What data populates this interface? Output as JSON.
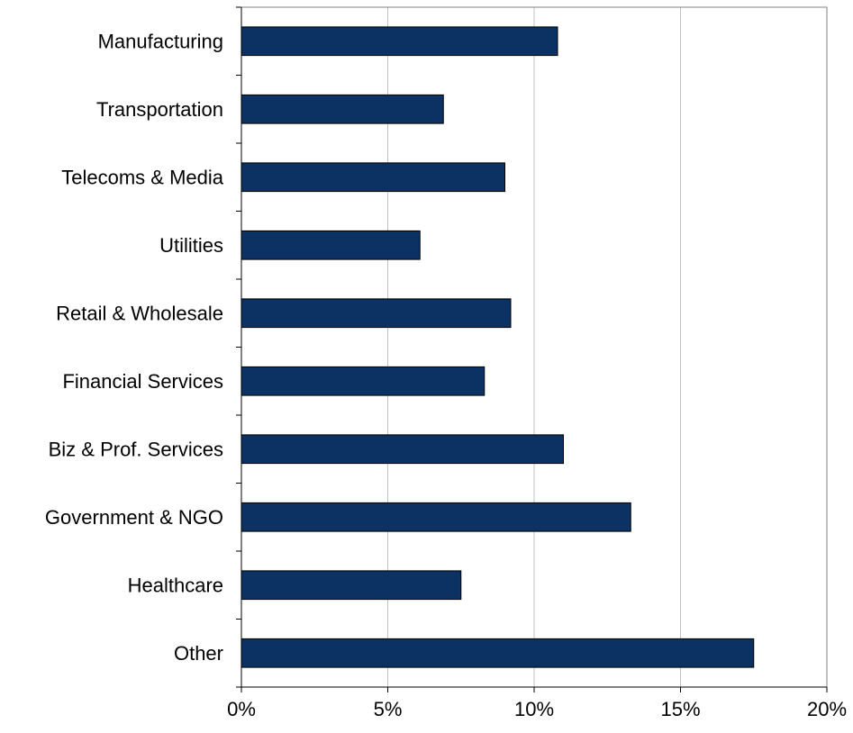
{
  "chart_data": {
    "type": "bar",
    "orientation": "horizontal",
    "title": "",
    "xlabel": "",
    "ylabel": "",
    "categories": [
      "Manufacturing",
      "Transportation",
      "Telecoms & Media",
      "Utilities",
      "Retail & Wholesale",
      "Financial Services",
      "Biz & Prof. Services",
      "Government & NGO",
      "Healthcare",
      "Other"
    ],
    "values": [
      10.8,
      6.9,
      9.0,
      6.1,
      9.2,
      8.3,
      11.0,
      13.3,
      7.5,
      17.5
    ],
    "xlim": [
      0,
      20
    ],
    "x_ticks": [
      0,
      5,
      10,
      15,
      20
    ],
    "x_tick_labels": [
      "0%",
      "5%",
      "10%",
      "15%",
      "20%"
    ],
    "unit": "%",
    "grid": "vertical",
    "legend": "none",
    "bar_color": "#0b3263",
    "gridline_color": "#c0c0c0"
  }
}
